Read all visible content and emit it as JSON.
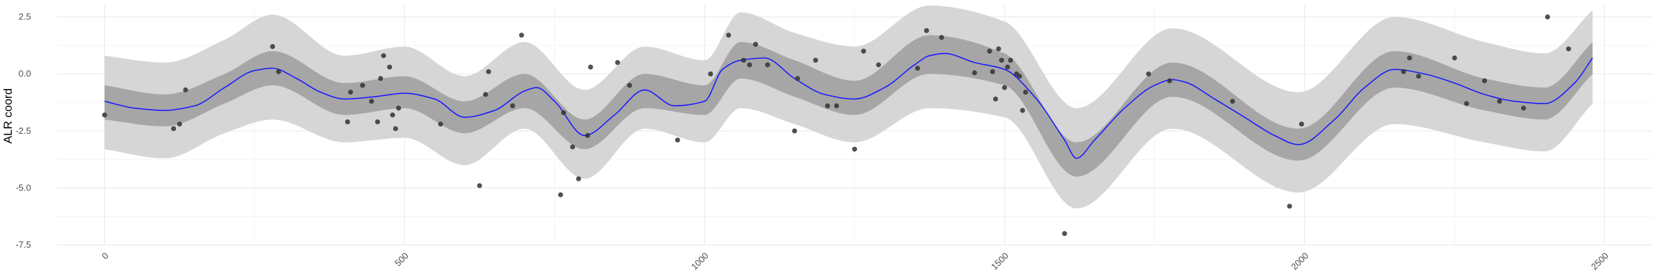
{
  "chart_data": {
    "type": "line",
    "title": "",
    "xlabel": "",
    "ylabel": "ALR coord",
    "xlim": [
      -80,
      2580
    ],
    "ylim": [
      -7.5,
      3.0
    ],
    "x_ticks": [
      0,
      500,
      1000,
      1500,
      2000,
      2500
    ],
    "y_ticks": [
      2.5,
      0.0,
      -2.5,
      -5.0,
      -7.5
    ],
    "x_tick_labels": [
      "0",
      "500",
      "1000",
      "1500",
      "2000",
      "2500"
    ],
    "y_tick_labels": [
      "2.5",
      "0.0",
      "-2.5",
      "-5.0",
      "-7.5"
    ],
    "grid": true,
    "colors": {
      "line": "#1a1aff",
      "inner_band": "#a6a6a6",
      "outer_band": "#d6d6d6",
      "points": "#333333",
      "grid": "#ebebeb"
    },
    "series": [
      {
        "type": "line",
        "x": [
          0,
          50,
          100,
          150,
          200,
          250,
          280,
          320,
          360,
          400,
          450,
          500,
          550,
          600,
          650,
          700,
          720,
          750,
          800,
          850,
          900,
          950,
          1000,
          1030,
          1060,
          1100,
          1150,
          1200,
          1250,
          1300,
          1350,
          1375,
          1400,
          1450,
          1500,
          1550,
          1600,
          1620,
          1650,
          1700,
          1750,
          1780,
          1800,
          1850,
          1900,
          1950,
          1990,
          2050,
          2100,
          2150,
          2200,
          2250,
          2300,
          2350,
          2400,
          2450,
          2480
        ],
        "y": [
          -1.2,
          -1.5,
          -1.6,
          -1.4,
          -0.6,
          0.15,
          0.25,
          -0.2,
          -0.8,
          -1.1,
          -1.0,
          -0.85,
          -1.1,
          -1.9,
          -1.6,
          -0.75,
          -0.6,
          -1.2,
          -2.7,
          -1.8,
          -0.7,
          -1.4,
          -1.2,
          0.2,
          0.6,
          0.7,
          -0.2,
          -0.9,
          -1.1,
          -0.6,
          0.4,
          0.8,
          0.9,
          0.5,
          0.2,
          -1.0,
          -2.9,
          -3.7,
          -2.9,
          -1.5,
          -0.5,
          -0.25,
          -0.35,
          -1.1,
          -1.9,
          -2.7,
          -3.1,
          -2.0,
          -0.6,
          0.2,
          0.0,
          -0.4,
          -0.9,
          -1.2,
          -1.3,
          -0.4,
          0.7
        ]
      },
      {
        "type": "band",
        "name": "inner",
        "x": [
          0,
          100,
          200,
          280,
          400,
          500,
          600,
          700,
          800,
          900,
          1000,
          1060,
          1150,
          1250,
          1375,
          1500,
          1620,
          1780,
          1990,
          2150,
          2300,
          2400,
          2480
        ],
        "low": [
          -2.0,
          -2.3,
          -1.3,
          -0.5,
          -1.8,
          -1.5,
          -2.6,
          -1.5,
          -3.3,
          -1.5,
          -1.8,
          -0.2,
          -1.0,
          -1.8,
          0.0,
          -0.5,
          -4.5,
          -1.0,
          -3.8,
          -0.6,
          -1.6,
          -2.0,
          0.0
        ],
        "high": [
          -0.5,
          -0.9,
          0.0,
          1.0,
          -0.4,
          -0.1,
          -1.2,
          0.0,
          -2.0,
          0.0,
          -0.5,
          1.4,
          0.6,
          -0.3,
          1.7,
          0.9,
          -3.0,
          0.5,
          -2.4,
          1.0,
          -0.2,
          -0.6,
          1.4
        ]
      },
      {
        "type": "band",
        "name": "outer",
        "x": [
          0,
          100,
          200,
          280,
          400,
          500,
          600,
          700,
          800,
          900,
          1000,
          1060,
          1150,
          1250,
          1375,
          1500,
          1620,
          1780,
          1990,
          2150,
          2300,
          2400,
          2480
        ],
        "low": [
          -3.3,
          -3.7,
          -2.6,
          -2.0,
          -3.0,
          -2.8,
          -4.0,
          -2.4,
          -4.6,
          -2.4,
          -3.0,
          -1.5,
          -2.2,
          -3.0,
          -1.5,
          -1.9,
          -5.9,
          -2.4,
          -5.2,
          -2.2,
          -3.0,
          -3.4,
          -1.3
        ],
        "high": [
          0.8,
          0.5,
          1.5,
          2.6,
          0.8,
          1.2,
          -0.1,
          1.4,
          -0.7,
          1.2,
          0.6,
          2.7,
          1.8,
          1.2,
          3.0,
          2.3,
          -1.5,
          2.0,
          -0.8,
          2.5,
          1.4,
          0.9,
          2.8
        ]
      },
      {
        "type": "scatter",
        "x": [
          0,
          115,
          125,
          135,
          280,
          290,
          405,
          410,
          430,
          445,
          455,
          460,
          465,
          475,
          480,
          485,
          490,
          560,
          625,
          635,
          640,
          680,
          695,
          760,
          765,
          780,
          790,
          805,
          810,
          855,
          875,
          955,
          1010,
          1040,
          1065,
          1075,
          1085,
          1105,
          1150,
          1155,
          1185,
          1205,
          1220,
          1250,
          1265,
          1290,
          1355,
          1370,
          1395,
          1450,
          1475,
          1480,
          1485,
          1490,
          1495,
          1500,
          1505,
          1510,
          1520,
          1525,
          1530,
          1535,
          1600,
          1740,
          1775,
          1880,
          1975,
          1995,
          2165,
          2175,
          2190,
          2250,
          2270,
          2300,
          2325,
          2365,
          2405,
          2440
        ],
        "y": [
          -1.8,
          -2.4,
          -2.2,
          -0.7,
          1.2,
          0.1,
          -2.1,
          -0.8,
          -0.5,
          -1.2,
          -2.1,
          -0.2,
          0.8,
          0.3,
          -1.8,
          -2.4,
          -1.5,
          -2.2,
          -4.9,
          -0.9,
          0.1,
          -1.4,
          1.7,
          -5.3,
          -1.7,
          -3.2,
          -4.6,
          -2.7,
          0.3,
          0.5,
          -0.5,
          -2.9,
          0.0,
          1.7,
          0.6,
          0.4,
          1.3,
          0.4,
          -2.5,
          -0.2,
          0.6,
          -1.4,
          -1.4,
          -3.3,
          1.0,
          0.4,
          0.25,
          1.9,
          1.6,
          0.05,
          1.0,
          0.1,
          -1.1,
          1.1,
          0.6,
          -0.6,
          0.3,
          0.6,
          0.0,
          -0.1,
          -1.6,
          -0.8,
          -7.0,
          0.0,
          -0.3,
          -1.2,
          -5.8,
          -2.2,
          0.1,
          0.7,
          -0.1,
          0.7,
          -1.3,
          -0.3,
          -1.2,
          -1.5,
          2.5,
          1.1
        ]
      }
    ]
  }
}
